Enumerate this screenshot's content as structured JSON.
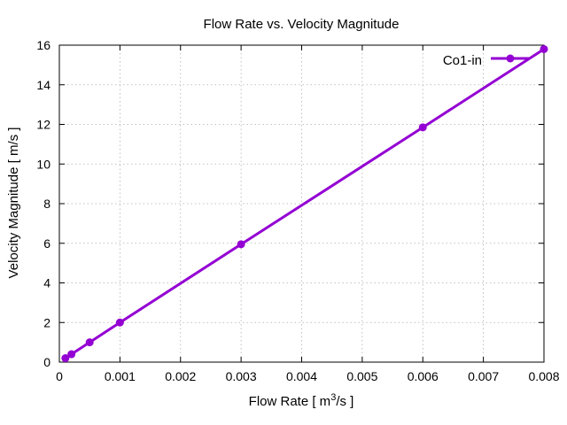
{
  "chart_data": {
    "type": "line",
    "title": "Flow Rate vs. Velocity Magnitude",
    "xlabel_main": "Flow Rate [ m",
    "xlabel_sup": "3",
    "xlabel_tail": "/s ]",
    "ylabel": "Velocity Magnitude [ m/s ]",
    "xlim": [
      0,
      0.008
    ],
    "ylim": [
      0,
      16
    ],
    "xticks": [
      0,
      0.001,
      0.002,
      0.003,
      0.004,
      0.005,
      0.006,
      0.007,
      0.008
    ],
    "xtick_labels": [
      "0",
      "0.001",
      "0.002",
      "0.003",
      "0.004",
      "0.005",
      "0.006",
      "0.007",
      "0.008"
    ],
    "yticks": [
      0,
      2,
      4,
      6,
      8,
      10,
      12,
      14,
      16
    ],
    "ytick_labels": [
      "0",
      "2",
      "4",
      "6",
      "8",
      "10",
      "12",
      "14",
      "16"
    ],
    "grid": true,
    "legend_position": "top-right",
    "series": [
      {
        "name": "Co1-in",
        "color": "#9400d3",
        "x": [
          0.0001,
          0.0002,
          0.0005,
          0.001,
          0.003,
          0.006,
          0.008
        ],
        "y": [
          0.2,
          0.4,
          1.0,
          2.0,
          5.95,
          11.85,
          15.8
        ]
      }
    ]
  }
}
